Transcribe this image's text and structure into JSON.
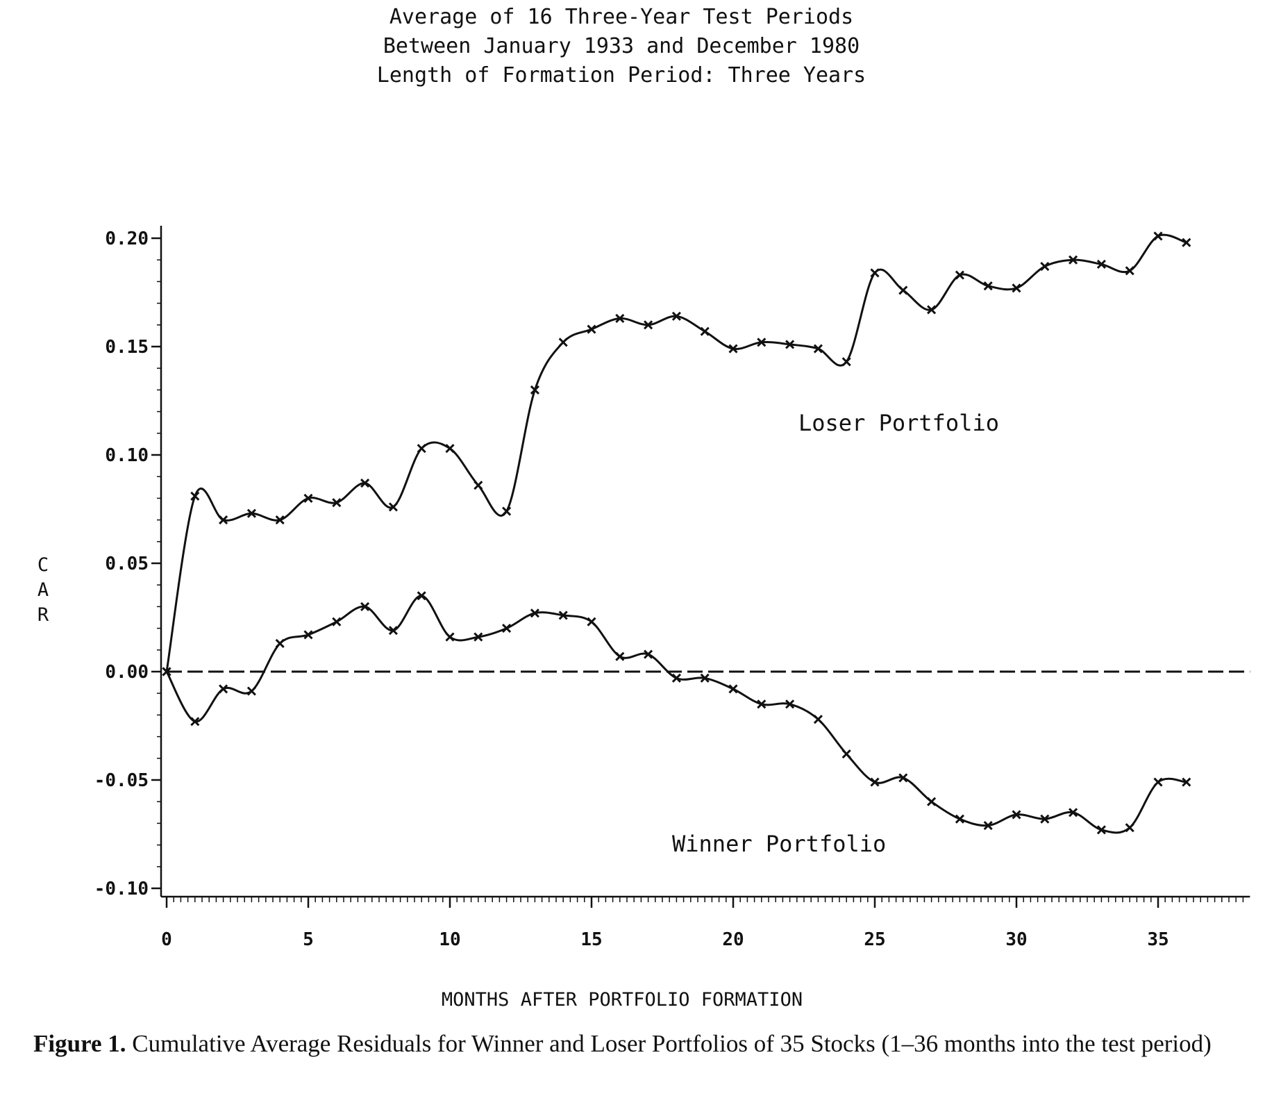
{
  "caption": {
    "figure_label": "Figure 1.",
    "text": "Cumulative Average Residuals for Winner and Loser Portfolios of 35 Stocks (1–36 months into the test period)"
  },
  "chart_data": {
    "type": "line",
    "title": [
      "Average of 16 Three-Year Test Periods",
      "Between January 1933 and December 1980",
      "Length of Formation Period:  Three Years"
    ],
    "xlabel": "MONTHS AFTER PORTFOLIO FORMATION",
    "ylabel": "CAR",
    "xlim": [
      0,
      38
    ],
    "ylim": [
      -0.1,
      0.2
    ],
    "xticks": [
      0,
      5,
      10,
      15,
      20,
      25,
      30,
      35
    ],
    "xtick_labels": [
      "0",
      "5",
      "10",
      "15",
      "20",
      "25",
      "30",
      "35"
    ],
    "yticks": [
      -0.1,
      -0.05,
      0.0,
      0.05,
      0.1,
      0.15,
      0.2
    ],
    "ytick_labels": [
      "-0.10",
      "-0.05",
      "0.00",
      "0.05",
      "0.10",
      "0.15",
      "0.20"
    ],
    "zero_line": "dashed",
    "grid": false,
    "x": [
      0,
      1,
      2,
      3,
      4,
      5,
      6,
      7,
      8,
      9,
      10,
      11,
      12,
      13,
      14,
      15,
      16,
      17,
      18,
      19,
      20,
      21,
      22,
      23,
      24,
      25,
      26,
      27,
      28,
      29,
      30,
      31,
      32,
      33,
      34,
      35,
      36
    ],
    "series": [
      {
        "name": "Loser Portfolio",
        "values": [
          0.0,
          0.081,
          0.07,
          0.073,
          0.07,
          0.08,
          0.078,
          0.087,
          0.076,
          0.103,
          0.103,
          0.086,
          0.074,
          0.13,
          0.152,
          0.158,
          0.163,
          0.16,
          0.164,
          0.157,
          0.149,
          0.152,
          0.151,
          0.149,
          0.143,
          0.184,
          0.176,
          0.167,
          0.183,
          0.178,
          0.177,
          0.187,
          0.19,
          0.188,
          0.185,
          0.201,
          0.198
        ]
      },
      {
        "name": "Winner Portfolio",
        "values": [
          0.0,
          -0.023,
          -0.008,
          -0.009,
          0.013,
          0.017,
          0.023,
          0.03,
          0.019,
          0.035,
          0.016,
          0.016,
          0.02,
          0.027,
          0.026,
          0.023,
          0.007,
          0.008,
          -0.003,
          -0.003,
          -0.008,
          -0.015,
          -0.015,
          -0.022,
          -0.038,
          -0.051,
          -0.049,
          -0.06,
          -0.068,
          -0.071,
          -0.066,
          -0.068,
          -0.065,
          -0.073,
          -0.072,
          -0.051,
          -0.051
        ]
      }
    ],
    "line_color": "#111111"
  }
}
